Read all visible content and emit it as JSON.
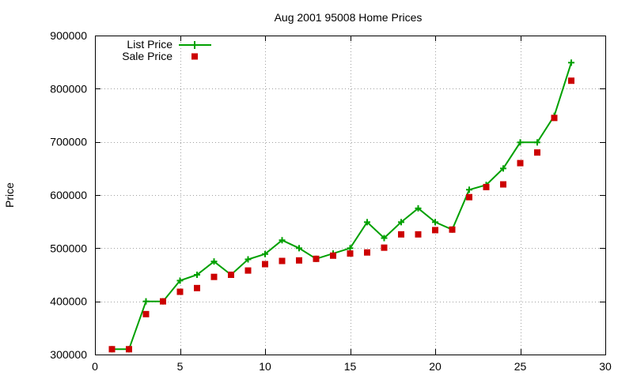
{
  "chart_data": {
    "type": "line",
    "title": "Aug 2001 95008 Home Prices",
    "xlabel": "",
    "ylabel": "Price",
    "xlim": [
      0,
      30
    ],
    "ylim": [
      300000,
      900000
    ],
    "xticks": [
      0,
      5,
      10,
      15,
      20,
      25,
      30
    ],
    "yticks": [
      300000,
      400000,
      500000,
      600000,
      700000,
      800000,
      900000
    ],
    "grid": true,
    "legend_position": "top-left",
    "x": [
      1,
      2,
      3,
      4,
      5,
      6,
      7,
      8,
      9,
      10,
      11,
      12,
      13,
      14,
      15,
      16,
      17,
      18,
      19,
      20,
      21,
      22,
      23,
      24,
      25,
      26,
      27,
      28
    ],
    "series": [
      {
        "name": "List Price",
        "style": "line-with-plus-markers",
        "color": "#00a000",
        "values": [
          310000,
          310000,
          400000,
          400000,
          439000,
          450000,
          475000,
          450000,
          479000,
          489000,
          515000,
          500000,
          480000,
          490000,
          500000,
          549000,
          519000,
          549000,
          575000,
          549000,
          535000,
          610000,
          619000,
          650000,
          699000,
          699000,
          749000,
          849000
        ]
      },
      {
        "name": "Sale Price",
        "style": "square-markers",
        "color": "#cc0000",
        "values": [
          310000,
          310000,
          376000,
          400000,
          418000,
          425000,
          446000,
          450000,
          458000,
          470000,
          476000,
          477000,
          480000,
          486000,
          490000,
          492000,
          501000,
          526000,
          526000,
          534000,
          535000,
          596000,
          615000,
          620000,
          660000,
          680000,
          745000,
          815000
        ]
      }
    ]
  }
}
